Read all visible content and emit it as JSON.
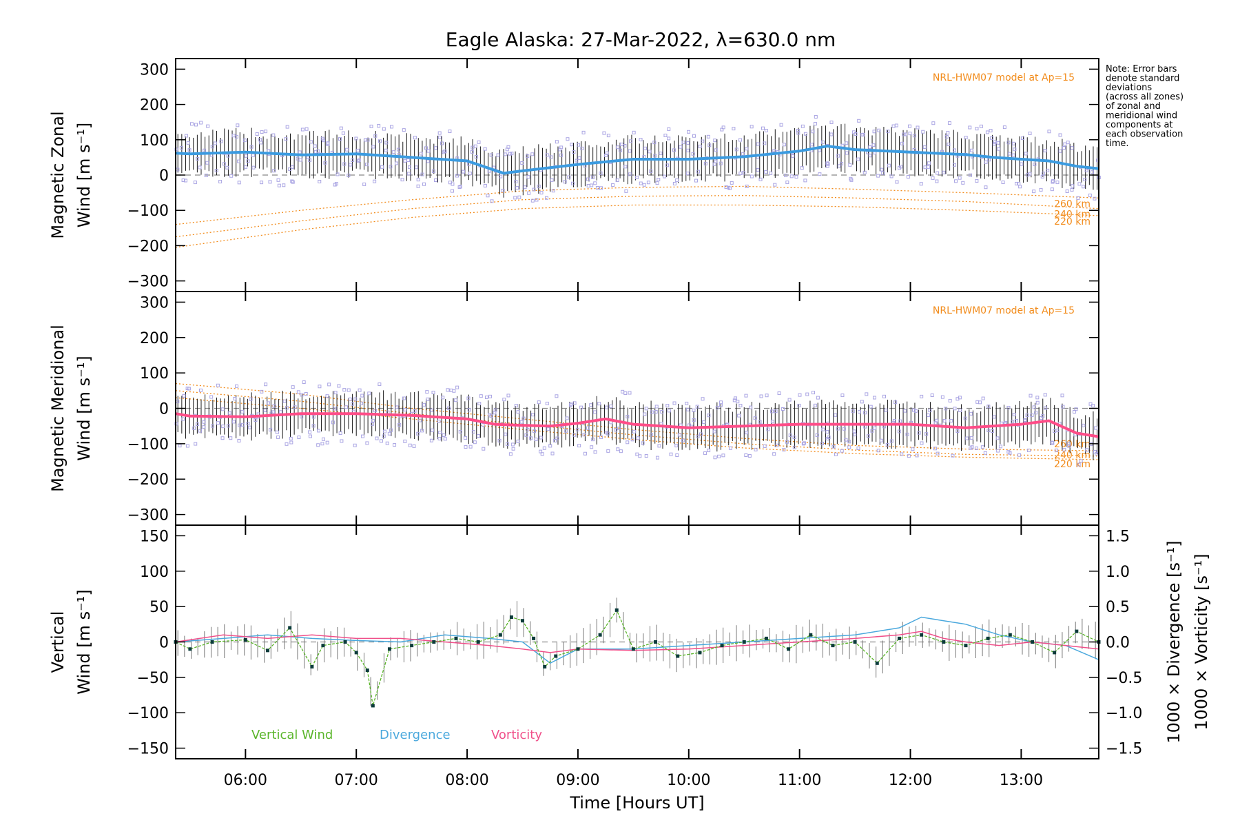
{
  "title": "Eagle Alaska: 27-Mar-2022, λ=630.0 nm",
  "note_lines": [
    "Note: Error bars",
    "denote standard",
    "deviations",
    "(across all zones)",
    "of zonal and",
    "meridional wind",
    "components at",
    "each observation",
    "time."
  ],
  "colors": {
    "zonal": "#3b9be0",
    "meridional": "#ff4d88",
    "vertical": "#5ab52a",
    "divergence": "#4aa8dd",
    "vorticity": "#f0508a",
    "model": "#f28c1c",
    "scatter": "#aaa5e3"
  },
  "chart_data": [
    {
      "type": "line",
      "ylabel_line1": "Magnetic Zonal",
      "ylabel_line2": "Wind [m s⁻¹]",
      "ylim": [
        -330,
        330
      ],
      "yticks": [
        "300",
        "200",
        "100",
        "0",
        "−100",
        "−200",
        "−300"
      ],
      "model_label": "NRL-HWM07 model at Ap=15",
      "x": [
        5.37,
        5.5,
        6.0,
        6.5,
        7.0,
        7.5,
        8.0,
        8.33,
        8.5,
        9.0,
        9.5,
        10.0,
        10.5,
        11.0,
        11.25,
        11.5,
        12.0,
        12.5,
        12.75,
        13.0,
        13.25,
        13.5,
        13.7
      ],
      "series": [
        {
          "values": [
            62,
            60,
            65,
            57,
            60,
            50,
            40,
            5,
            12,
            30,
            45,
            45,
            52,
            68,
            82,
            72,
            65,
            58,
            50,
            45,
            40,
            25,
            18
          ]
        }
      ],
      "model_curves": [
        {
          "label": "260 km",
          "x": [
            5.37,
            6.5,
            7.5,
            8.5,
            9.5,
            10.5,
            11.5,
            12.5,
            13.7
          ],
          "values": [
            -140,
            -100,
            -70,
            -45,
            -35,
            -32,
            -40,
            -50,
            -65
          ]
        },
        {
          "label": "240 km",
          "x": [
            5.37,
            6.5,
            7.5,
            8.5,
            9.5,
            10.5,
            11.5,
            12.5,
            13.7
          ],
          "values": [
            -175,
            -130,
            -95,
            -70,
            -60,
            -58,
            -65,
            -75,
            -95
          ]
        },
        {
          "label": "220 km",
          "x": [
            5.37,
            6.5,
            7.5,
            8.5,
            9.5,
            10.5,
            11.5,
            12.5,
            13.7
          ],
          "values": [
            -205,
            -155,
            -120,
            -95,
            -85,
            -85,
            -90,
            -100,
            -115
          ]
        }
      ]
    },
    {
      "type": "line",
      "ylabel_line1": "Magnetic Meridional",
      "ylabel_line2": "Wind [m s⁻¹]",
      "ylim": [
        -330,
        330
      ],
      "yticks": [
        "300",
        "200",
        "100",
        "0",
        "−100",
        "−200",
        "−300"
      ],
      "model_label": "NRL-HWM07 model at Ap=15",
      "x": [
        5.37,
        5.5,
        6.0,
        6.5,
        7.0,
        7.5,
        8.0,
        8.25,
        8.5,
        8.75,
        9.0,
        9.25,
        9.5,
        10.0,
        10.5,
        11.0,
        11.5,
        12.0,
        12.5,
        13.0,
        13.25,
        13.5,
        13.7
      ],
      "series": [
        {
          "values": [
            -15,
            -22,
            -24,
            -15,
            -15,
            -20,
            -30,
            -45,
            -48,
            -50,
            -42,
            -30,
            -45,
            -55,
            -50,
            -45,
            -45,
            -45,
            -55,
            -45,
            -35,
            -70,
            -80
          ]
        }
      ],
      "model_curves": [
        {
          "label": "260 km",
          "x": [
            5.37,
            6.5,
            7.5,
            8.5,
            9.5,
            10.5,
            11.5,
            12.5,
            13.7
          ],
          "values": [
            70,
            40,
            0,
            -30,
            -60,
            -85,
            -105,
            -115,
            -120
          ]
        },
        {
          "label": "240 km",
          "x": [
            5.37,
            6.5,
            7.5,
            8.5,
            9.5,
            10.5,
            11.5,
            12.5,
            13.7
          ],
          "values": [
            50,
            20,
            -15,
            -45,
            -75,
            -100,
            -118,
            -130,
            -135
          ]
        },
        {
          "label": "220 km",
          "x": [
            5.37,
            6.5,
            7.5,
            8.5,
            9.5,
            10.5,
            11.5,
            12.5,
            13.7
          ],
          "values": [
            30,
            0,
            -30,
            -60,
            -88,
            -112,
            -128,
            -138,
            -145
          ]
        }
      ]
    },
    {
      "type": "line",
      "ylabel_line1": "Vertical",
      "ylabel_line2": "Wind [m s⁻¹]",
      "ylim": [
        -165,
        165
      ],
      "yticks": [
        "150",
        "100",
        "50",
        "0",
        "−50",
        "−100",
        "−150"
      ],
      "y2label_div": "1000 × Divergence [s⁻¹]",
      "y2label_vor": "1000 × Vorticity [s⁻¹]",
      "y2lim": [
        -1.65,
        1.65
      ],
      "y2ticks": [
        "1.5",
        "1.0",
        "0.5",
        "0.0",
        "−0.5",
        "−1.0",
        "−1.5"
      ],
      "xlabel": "Time [Hours UT]",
      "xticks": [
        "06:00",
        "07:00",
        "08:00",
        "09:00",
        "10:00",
        "11:00",
        "13:00"
      ],
      "xticks_all": [
        "06:00",
        "07:00",
        "08:00",
        "09:00",
        "10:00",
        "11:00",
        "12:00",
        "13:00"
      ],
      "xlim": [
        5.37,
        13.7
      ],
      "legend": [
        "Vertical Wind",
        "Divergence",
        "Vorticity"
      ],
      "series": [
        {
          "name": "Vertical Wind",
          "x": [
            5.37,
            5.5,
            5.7,
            6.0,
            6.2,
            6.4,
            6.6,
            6.7,
            6.9,
            7.0,
            7.1,
            7.15,
            7.3,
            7.5,
            7.7,
            7.9,
            8.1,
            8.3,
            8.4,
            8.5,
            8.6,
            8.7,
            8.8,
            9.0,
            9.2,
            9.35,
            9.5,
            9.7,
            9.9,
            10.1,
            10.3,
            10.5,
            10.7,
            10.9,
            11.1,
            11.3,
            11.5,
            11.7,
            11.9,
            12.1,
            12.3,
            12.5,
            12.7,
            12.9,
            13.1,
            13.3,
            13.5,
            13.7
          ],
          "values": [
            0,
            -10,
            0,
            3,
            -12,
            20,
            -35,
            -5,
            0,
            -15,
            -40,
            -90,
            -10,
            -5,
            0,
            5,
            0,
            10,
            35,
            30,
            5,
            -35,
            -20,
            -10,
            10,
            45,
            -10,
            0,
            -20,
            -15,
            -5,
            0,
            5,
            -10,
            10,
            -5,
            0,
            -30,
            5,
            10,
            0,
            -5,
            5,
            10,
            0,
            -15,
            15,
            0
          ]
        },
        {
          "name": "Divergence",
          "x": [
            5.37,
            5.8,
            6.2,
            6.6,
            7.0,
            7.4,
            7.8,
            8.2,
            8.5,
            8.75,
            9.0,
            9.5,
            10.0,
            10.5,
            11.0,
            11.5,
            11.9,
            12.1,
            12.3,
            12.5,
            12.8,
            13.1,
            13.4,
            13.7
          ],
          "values": [
            0,
            0.05,
            0.1,
            0.05,
            0.02,
            0.0,
            0.1,
            0.05,
            0.0,
            -0.3,
            -0.1,
            -0.1,
            -0.05,
            0.0,
            0.05,
            0.1,
            0.2,
            0.35,
            0.3,
            0.25,
            0.1,
            0.0,
            -0.05,
            -0.25
          ]
        },
        {
          "name": "Vorticity",
          "x": [
            5.37,
            5.8,
            6.2,
            6.6,
            7.0,
            7.4,
            7.8,
            8.2,
            8.5,
            8.75,
            9.0,
            9.5,
            10.0,
            10.5,
            11.0,
            11.5,
            11.9,
            12.1,
            12.3,
            12.5,
            12.8,
            13.1,
            13.4,
            13.7
          ],
          "values": [
            0,
            0.1,
            0.05,
            0.1,
            0.05,
            0.05,
            0.0,
            -0.05,
            -0.1,
            -0.15,
            -0.1,
            -0.12,
            -0.1,
            -0.05,
            0.0,
            0.05,
            0.1,
            0.15,
            0.05,
            0.0,
            -0.05,
            0.0,
            -0.05,
            -0.1
          ]
        }
      ]
    }
  ]
}
